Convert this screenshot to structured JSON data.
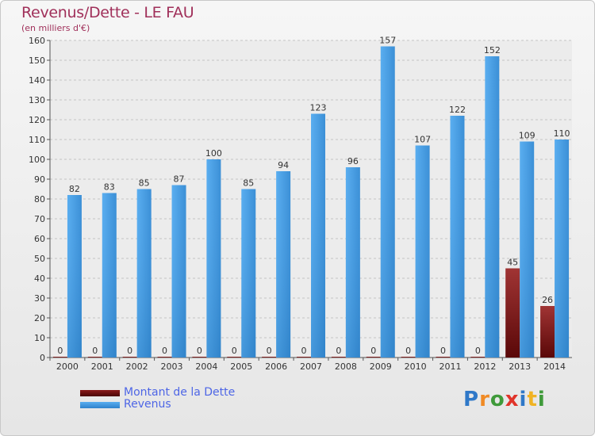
{
  "chart_data": {
    "type": "bar",
    "title": "Revenus/Dette - LE FAU",
    "subtitle": "(en milliers d'€)",
    "categories": [
      "2000",
      "2001",
      "2002",
      "2003",
      "2004",
      "2005",
      "2006",
      "2007",
      "2008",
      "2009",
      "2010",
      "2011",
      "2012",
      "2013",
      "2014"
    ],
    "series": [
      {
        "name": "Montant de la Dette",
        "color": "#7a1414",
        "values": [
          0,
          0,
          0,
          0,
          0,
          0,
          0,
          0,
          0,
          0,
          0,
          0,
          0,
          45,
          26
        ]
      },
      {
        "name": "Revenus",
        "color": "#4a9fe0",
        "values": [
          82,
          83,
          85,
          87,
          100,
          85,
          94,
          123,
          96,
          157,
          107,
          122,
          152,
          109,
          110
        ]
      }
    ],
    "ylim": [
      0,
      160
    ],
    "yticks": [
      0,
      10,
      20,
      30,
      40,
      50,
      60,
      70,
      80,
      90,
      100,
      110,
      120,
      130,
      140,
      150,
      160
    ],
    "grid": true,
    "legend_position": "bottom-left"
  },
  "logo": {
    "text": "Proxiti",
    "letters": [
      {
        "char": "P",
        "color": "#2f78c8"
      },
      {
        "char": "r",
        "color": "#f08a24"
      },
      {
        "char": "o",
        "color": "#3f9a3a"
      },
      {
        "char": "x",
        "color": "#e0342a"
      },
      {
        "char": "i",
        "color": "#2f78c8"
      },
      {
        "char": "t",
        "color": "#f0b324"
      },
      {
        "char": "i",
        "color": "#3f9a3a"
      }
    ]
  }
}
